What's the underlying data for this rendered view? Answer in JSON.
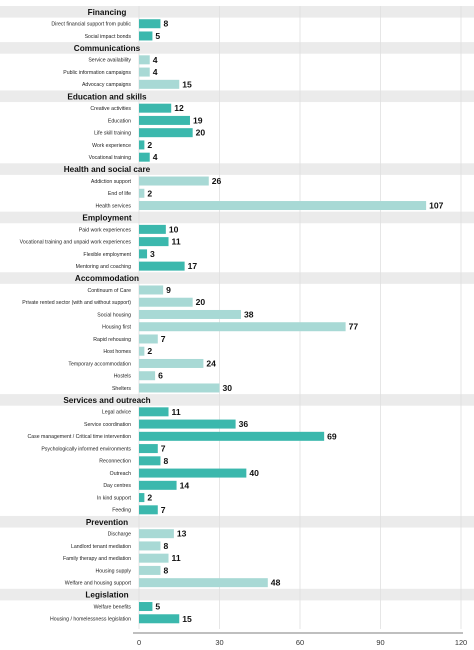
{
  "chart_data": {
    "type": "bar",
    "orientation": "horizontal",
    "xlim": [
      0,
      120
    ],
    "xticks": [
      0,
      30,
      60,
      90,
      120
    ],
    "grid": "vertical",
    "colors": {
      "dark": "#3bb8ad",
      "light": "#a8d9d5",
      "group_band": "#ebebeb",
      "grid": "#e0e0e0"
    },
    "groups": [
      {
        "name": "Financing",
        "items": [
          {
            "label": "Direct financial support from public",
            "value": 8,
            "shade": "dark"
          },
          {
            "label": "Social impact bonds",
            "value": 5,
            "shade": "dark"
          }
        ]
      },
      {
        "name": "Communications",
        "items": [
          {
            "label": "Service availability",
            "value": 4,
            "shade": "light"
          },
          {
            "label": "Public information campaigns",
            "value": 4,
            "shade": "light"
          },
          {
            "label": "Advocacy campaigns",
            "value": 15,
            "shade": "light"
          }
        ]
      },
      {
        "name": "Education and skills",
        "items": [
          {
            "label": "Creative activities",
            "value": 12,
            "shade": "dark"
          },
          {
            "label": "Education",
            "value": 19,
            "shade": "dark"
          },
          {
            "label": "Life skill training",
            "value": 20,
            "shade": "dark"
          },
          {
            "label": "Work experience",
            "value": 2,
            "shade": "dark"
          },
          {
            "label": "Vocational training",
            "value": 4,
            "shade": "dark"
          }
        ]
      },
      {
        "name": "Health and social care",
        "items": [
          {
            "label": "Addiction support",
            "value": 26,
            "shade": "light"
          },
          {
            "label": "End of life",
            "value": 2,
            "shade": "light"
          },
          {
            "label": "Health services",
            "value": 107,
            "shade": "light"
          }
        ]
      },
      {
        "name": "Employment",
        "items": [
          {
            "label": "Paid work experiences",
            "value": 10,
            "shade": "dark"
          },
          {
            "label": "Vocational training and unpaid work experiences",
            "value": 11,
            "shade": "dark"
          },
          {
            "label": "Flexible employment",
            "value": 3,
            "shade": "dark"
          },
          {
            "label": "Mentoring and coaching",
            "value": 17,
            "shade": "dark"
          }
        ]
      },
      {
        "name": "Accommodation",
        "items": [
          {
            "label": "Continuum of Care",
            "value": 9,
            "shade": "light"
          },
          {
            "label": "Private rented sector (with and without support)",
            "value": 20,
            "shade": "light"
          },
          {
            "label": "Social housing",
            "value": 38,
            "shade": "light"
          },
          {
            "label": "Housing first",
            "value": 77,
            "shade": "light"
          },
          {
            "label": "Rapid rehousing",
            "value": 7,
            "shade": "light"
          },
          {
            "label": "Host homes",
            "value": 2,
            "shade": "light"
          },
          {
            "label": "Temporary accommodation",
            "value": 24,
            "shade": "light"
          },
          {
            "label": "Hostels",
            "value": 6,
            "shade": "light"
          },
          {
            "label": "Shelters",
            "value": 30,
            "shade": "light"
          }
        ]
      },
      {
        "name": "Services and outreach",
        "items": [
          {
            "label": "Legal advice",
            "value": 11,
            "shade": "dark"
          },
          {
            "label": "Service coordination",
            "value": 36,
            "shade": "dark"
          },
          {
            "label": "Case management / Critical time intervention",
            "value": 69,
            "shade": "dark"
          },
          {
            "label": "Psychologically informed environments",
            "value": 7,
            "shade": "dark"
          },
          {
            "label": "Reconnection",
            "value": 8,
            "shade": "dark"
          },
          {
            "label": "Outreach",
            "value": 40,
            "shade": "dark"
          },
          {
            "label": "Day centres",
            "value": 14,
            "shade": "dark"
          },
          {
            "label": "In kind support",
            "value": 2,
            "shade": "dark"
          },
          {
            "label": "Feeding",
            "value": 7,
            "shade": "dark"
          }
        ]
      },
      {
        "name": "Prevention",
        "items": [
          {
            "label": "Discharge",
            "value": 13,
            "shade": "light"
          },
          {
            "label": "Landlord tenant mediation",
            "value": 8,
            "shade": "light"
          },
          {
            "label": "Family therapy and mediation",
            "value": 11,
            "shade": "light"
          },
          {
            "label": "Housing supply",
            "value": 8,
            "shade": "light"
          },
          {
            "label": "Welfare and housing support",
            "value": 48,
            "shade": "light"
          }
        ]
      },
      {
        "name": "Legislation",
        "items": [
          {
            "label": "Welfare benefits",
            "value": 5,
            "shade": "dark"
          },
          {
            "label": "Housing / homelessness legislation",
            "value": 15,
            "shade": "dark"
          }
        ]
      }
    ]
  }
}
